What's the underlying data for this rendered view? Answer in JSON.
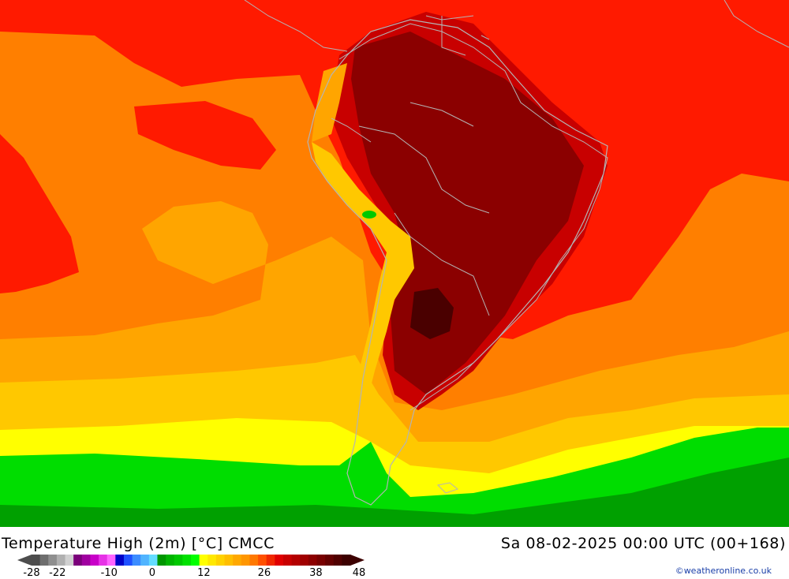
{
  "map": {
    "colors": {
      "sea_warm": "#ff1a00",
      "sea_orange": "#ff7f00",
      "sea_amber": "#ffa500",
      "sea_yellow_orange": "#ffc800",
      "sea_yellow": "#ffff00",
      "cold_green": "#00dd00",
      "cold_darkgreen": "#00a000",
      "land_darkred": "#c80000",
      "land_maroon": "#8b0000",
      "land_hot": "#4a0000",
      "border": "#b4b4b4"
    }
  },
  "footer": {
    "title": "Temperature High (2m) [°C] CMCC",
    "datetime": "Sa 08-02-2025 00:00 UTC (00+168)",
    "credit": "©weatheronline.co.uk"
  },
  "legend": {
    "labels": [
      {
        "text": "-28",
        "value": -28
      },
      {
        "text": "-22",
        "value": -22
      },
      {
        "text": "-10",
        "value": -10
      },
      {
        "text": "0",
        "value": 0
      },
      {
        "text": "12",
        "value": 12
      },
      {
        "text": "26",
        "value": 26
      },
      {
        "text": "38",
        "value": 38
      },
      {
        "text": "48",
        "value": 48
      }
    ],
    "swatches": [
      "#4d4d4d",
      "#6e6e6e",
      "#8f8f8f",
      "#b0b0b0",
      "#d0d0d0",
      "#7a007a",
      "#a000a0",
      "#c800c8",
      "#e632e6",
      "#ff64ff",
      "#0000c8",
      "#1e50ff",
      "#3c8cff",
      "#50b4ff",
      "#64dcff",
      "#009600",
      "#00b400",
      "#00c800",
      "#00e100",
      "#00ff00",
      "#ffff00",
      "#ffe800",
      "#ffd200",
      "#ffbe00",
      "#ffa800",
      "#ff9600",
      "#ff7800",
      "#ff5000",
      "#f02800",
      "#e00000",
      "#c80000",
      "#b40000",
      "#a00000",
      "#8c0000",
      "#780000",
      "#640000",
      "#500000",
      "#3c0000"
    ]
  }
}
